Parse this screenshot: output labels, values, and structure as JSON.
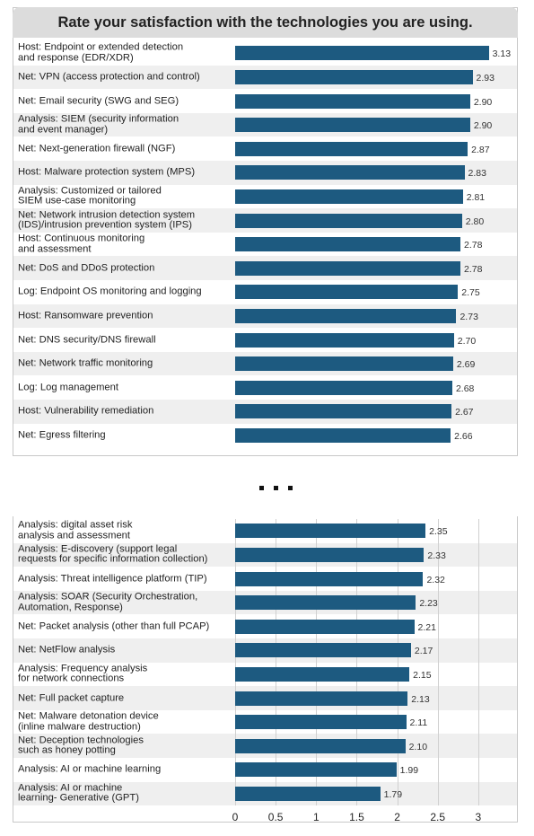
{
  "chart_data": [
    {
      "type": "bar",
      "title": "Rate your satisfaction with the technologies you are using.",
      "categories": [
        "Host: Endpoint or extended detection\nand response (EDR/XDR)",
        "Net: VPN (access protection and control)",
        "Net: Email security (SWG and SEG)",
        "Analysis: SIEM (security information\nand event manager)",
        "Net: Next-generation firewall (NGF)",
        "Host: Malware protection system (MPS)",
        "Analysis: Customized or tailored\nSIEM use-case monitoring",
        "Net: Network intrusion detection system\n(IDS)/intrusion prevention system (IPS)",
        "Host: Continuous monitoring\nand assessment",
        "Net: DoS and DDoS protection",
        "Log: Endpoint OS monitoring and logging",
        "Host: Ransomware prevention",
        "Net: DNS security/DNS firewall",
        "Net: Network traffic monitoring",
        "Log: Log management",
        "Host: Vulnerability remediation",
        "Net: Egress filtering"
      ],
      "values": [
        3.13,
        2.93,
        2.9,
        2.9,
        2.87,
        2.83,
        2.81,
        2.8,
        2.78,
        2.78,
        2.75,
        2.73,
        2.7,
        2.69,
        2.68,
        2.67,
        2.66
      ],
      "value_labels": [
        "3.13",
        "2.93",
        "2.90",
        "2.90",
        "2.87",
        "2.83",
        "2.81",
        "2.80",
        "2.78",
        "2.78",
        "2.75",
        "2.73",
        "2.70",
        "2.69",
        "2.68",
        "2.67",
        "2.66"
      ],
      "color": "#1d5a80",
      "xlim": [
        0,
        3.5
      ],
      "grid": false
    },
    {
      "type": "bar",
      "categories": [
        "Analysis: digital asset risk\nanalysis and assessment",
        "Analysis: E-discovery (support legal\nrequests for specific information collection)",
        "Analysis: Threat intelligence platform (TIP)",
        "Analysis: SOAR (Security Orchestration,\nAutomation, Response)",
        "Net: Packet analysis (other than full PCAP)",
        "Net: NetFlow analysis",
        "Analysis: Frequency analysis\nfor network connections",
        "Net: Full packet capture",
        "Net: Malware detonation device\n(inline malware destruction)",
        "Net: Deception technologies\nsuch as honey potting",
        "Analysis: AI or machine learning",
        "Analysis: AI or machine\nlearning- Generative (GPT)"
      ],
      "values": [
        2.35,
        2.33,
        2.32,
        2.23,
        2.21,
        2.17,
        2.15,
        2.13,
        2.11,
        2.1,
        1.99,
        1.79
      ],
      "value_labels": [
        "2.35",
        "2.33",
        "2.32",
        "2.23",
        "2.21",
        "2.17",
        "2.15",
        "2.13",
        "2.11",
        "2.10",
        "1.99",
        "1.79"
      ],
      "color": "#1d5a80",
      "xlim": [
        0,
        3.5
      ],
      "xticks": [
        0,
        0.5,
        1,
        1.5,
        2,
        2.5,
        3
      ],
      "grid": true
    }
  ]
}
